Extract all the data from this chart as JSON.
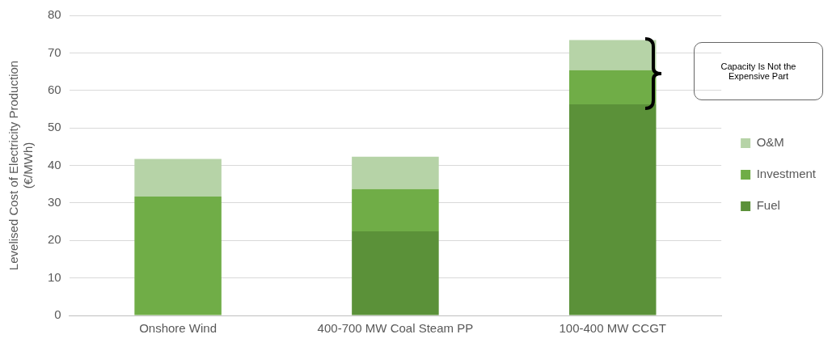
{
  "chart_data": {
    "type": "bar",
    "stacked": true,
    "ylabel": "Levelised Cost of Electricity Production\n(€/MWh)",
    "categories": [
      "Onshore Wind",
      "400-700 MW Coal Steam PP",
      "100-400 MW CCGT"
    ],
    "series": [
      {
        "name": "Fuel",
        "color": "#5b9139",
        "values": [
          0,
          22.4,
          56.3
        ]
      },
      {
        "name": "Investment",
        "color": "#70ad47",
        "values": [
          31.7,
          11.3,
          9.1
        ]
      },
      {
        "name": "O&M",
        "color": "#b6d3a7",
        "values": [
          10.0,
          8.6,
          8.0
        ]
      }
    ],
    "ylim": [
      0,
      80
    ],
    "yticks": [
      0,
      10,
      20,
      30,
      40,
      50,
      60,
      70,
      80
    ],
    "grid": "y",
    "legend": "right",
    "annotations": [
      "Capacity Is Not the Expensive Part"
    ]
  }
}
